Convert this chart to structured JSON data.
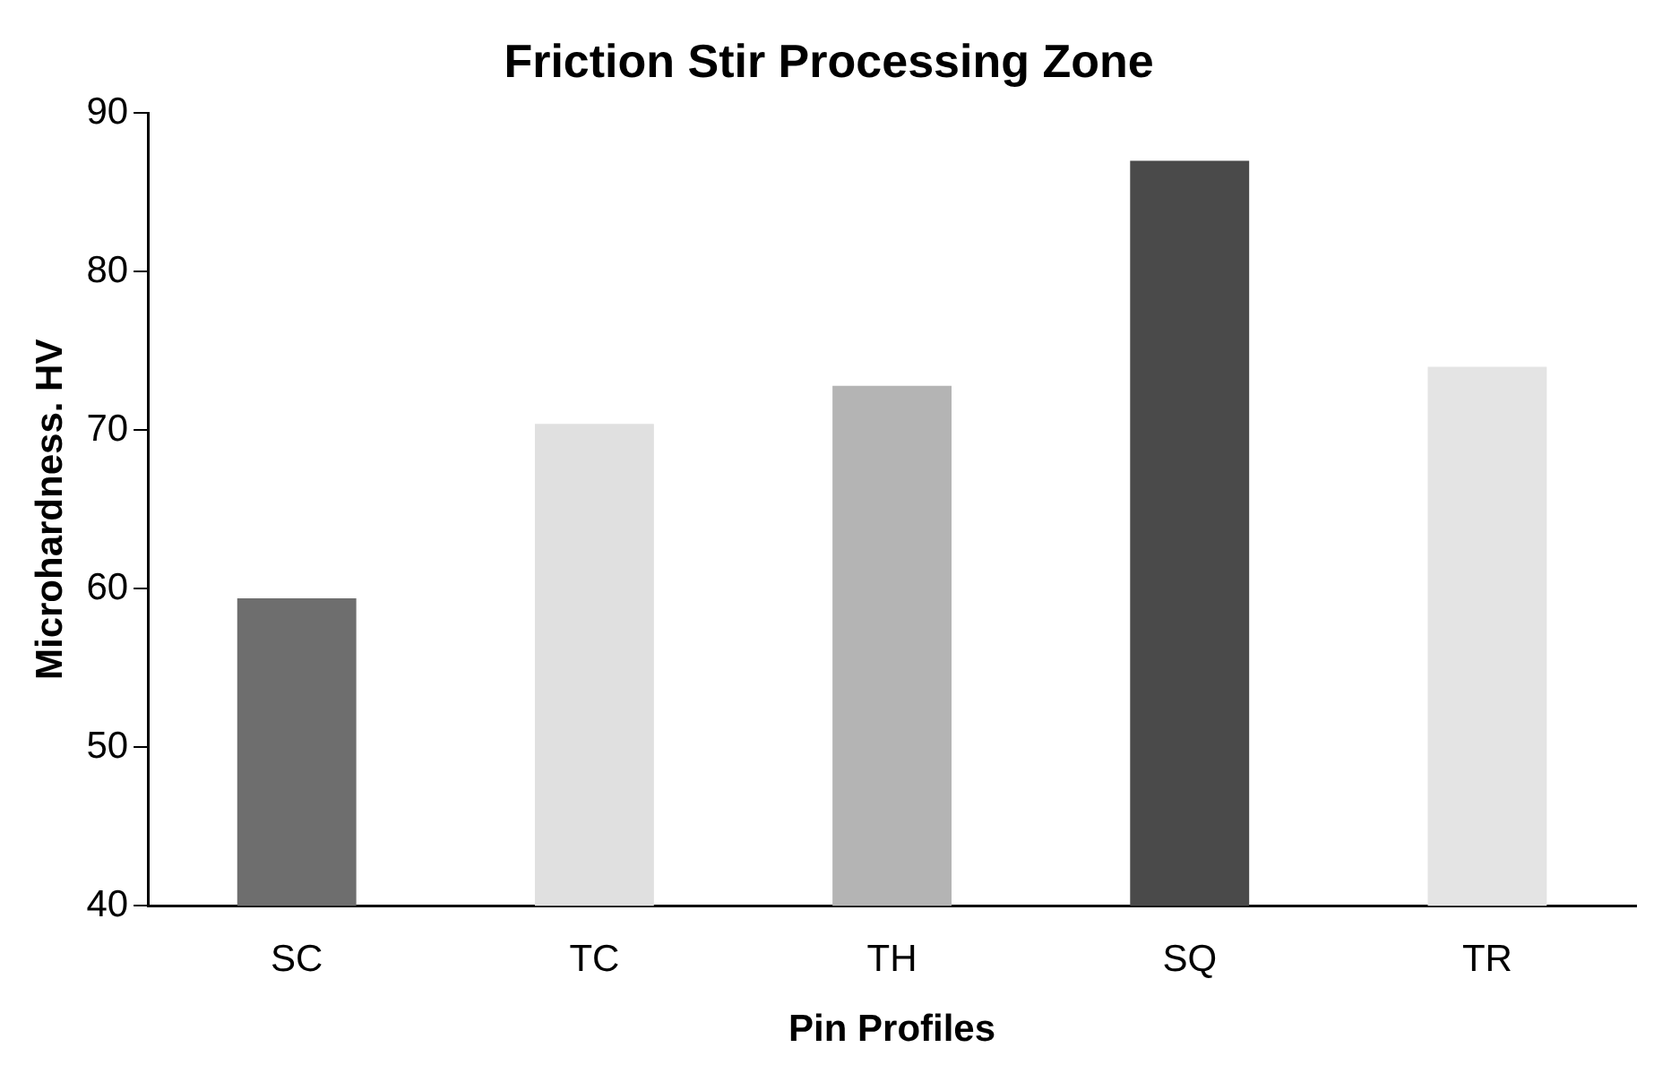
{
  "chart_data": {
    "type": "bar",
    "title": "Friction Stir Processing Zone",
    "xlabel": "Pin Profiles",
    "ylabel": "Microhardness. HV",
    "categories": [
      "SC",
      "TC",
      "TH",
      "SQ",
      "TR"
    ],
    "values": [
      59.4,
      70.4,
      72.8,
      87.0,
      74.0
    ],
    "colors": [
      "#6e6e6e",
      "#e0e0e0",
      "#b4b4b4",
      "#4a4a4a",
      "#e4e4e4"
    ],
    "ylim": [
      40,
      90
    ],
    "yticks": [
      40,
      50,
      60,
      70,
      80,
      90
    ],
    "grid": false,
    "legend": false
  }
}
